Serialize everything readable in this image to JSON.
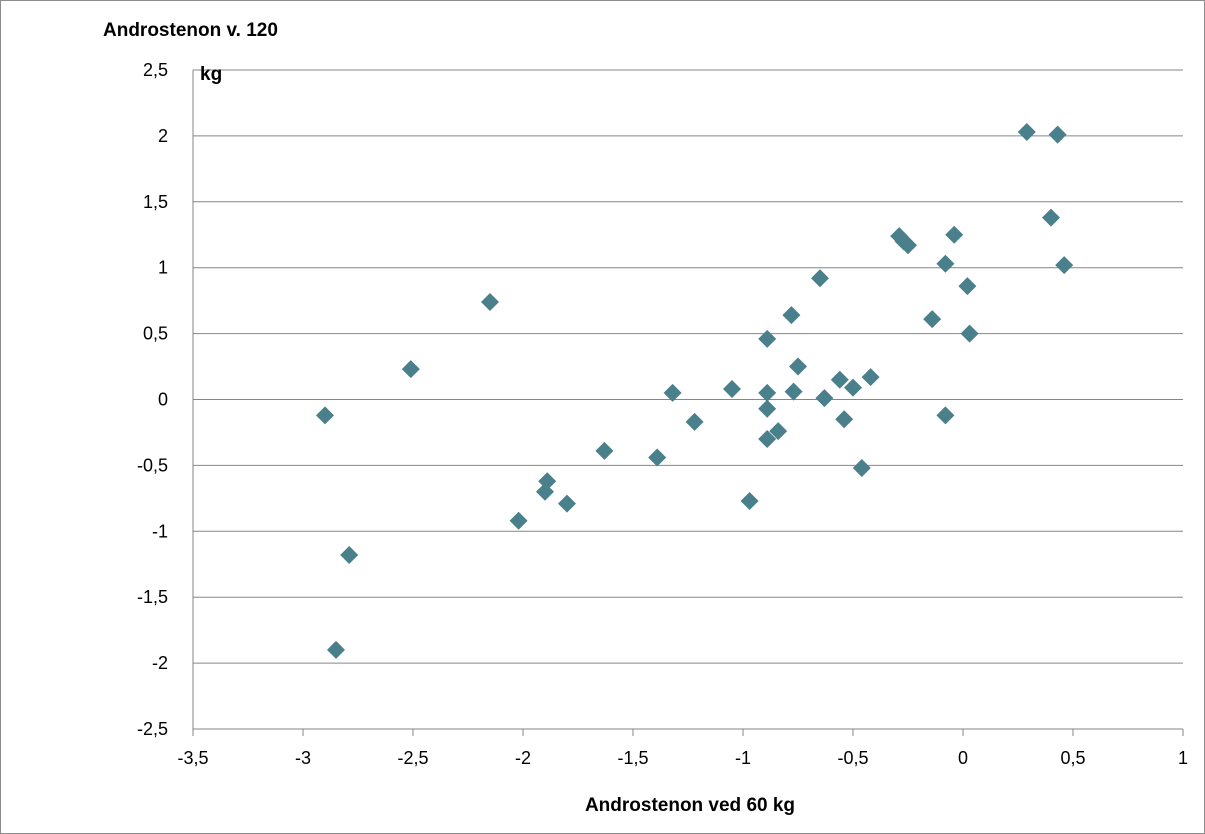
{
  "chart_data": {
    "type": "scatter",
    "title": "",
    "xlabel": "Androstenon ved 60 kg",
    "ylabel_line1": "Androstenon v. 120",
    "ylabel_line2": "kg",
    "xlim": [
      -3.5,
      1
    ],
    "ylim": [
      -2.5,
      2.5
    ],
    "x_ticks": [
      "-3,5",
      "-3",
      "-2,5",
      "-2",
      "-1,5",
      "-1",
      "-0,5",
      "0",
      "0,5",
      "1"
    ],
    "y_ticks": [
      "2,5",
      "2",
      "1,5",
      "1",
      "0,5",
      "0",
      "-0,5",
      "-1",
      "-1,5",
      "-2",
      "-2,5"
    ],
    "grid": "horizontal",
    "legend": "none",
    "marker_color": "#4a7f8c",
    "points": [
      [
        0.29,
        2.03
      ],
      [
        0.43,
        2.01
      ],
      [
        0.4,
        1.38
      ],
      [
        0.46,
        1.02
      ],
      [
        -0.29,
        1.24
      ],
      [
        -0.27,
        1.2
      ],
      [
        -0.25,
        1.17
      ],
      [
        -0.04,
        1.25
      ],
      [
        -0.08,
        1.03
      ],
      [
        0.02,
        0.86
      ],
      [
        -0.14,
        0.61
      ],
      [
        0.03,
        0.5
      ],
      [
        -0.08,
        -0.12
      ],
      [
        -0.65,
        0.92
      ],
      [
        -0.78,
        0.64
      ],
      [
        -0.89,
        0.46
      ],
      [
        -0.75,
        0.25
      ],
      [
        -0.56,
        0.15
      ],
      [
        -0.42,
        0.17
      ],
      [
        -0.5,
        0.09
      ],
      [
        -0.77,
        0.06
      ],
      [
        -0.89,
        0.05
      ],
      [
        -0.63,
        0.01
      ],
      [
        -0.89,
        -0.07
      ],
      [
        -0.54,
        -0.15
      ],
      [
        -0.84,
        -0.24
      ],
      [
        -0.89,
        -0.3
      ],
      [
        -0.46,
        -0.52
      ],
      [
        -0.97,
        -0.77
      ],
      [
        -1.05,
        0.08
      ],
      [
        -1.32,
        0.05
      ],
      [
        -1.22,
        -0.17
      ],
      [
        -1.39,
        -0.44
      ],
      [
        -1.63,
        -0.39
      ],
      [
        -1.89,
        -0.62
      ],
      [
        -1.9,
        -0.7
      ],
      [
        -1.8,
        -0.79
      ],
      [
        -2.02,
        -0.92
      ],
      [
        -2.15,
        0.74
      ],
      [
        -2.51,
        0.23
      ],
      [
        -2.9,
        -0.12
      ],
      [
        -2.79,
        -1.18
      ],
      [
        -2.85,
        -1.9
      ]
    ]
  }
}
